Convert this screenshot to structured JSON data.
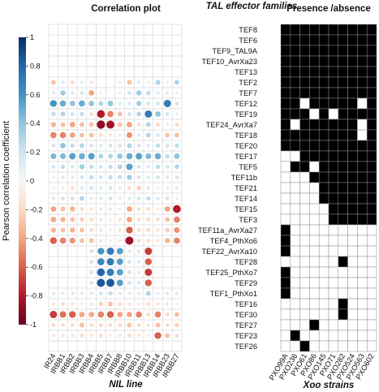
{
  "chart_data": [
    {
      "type": "heatmap",
      "title": "Correlation plot",
      "xlabel": "NIL line",
      "colorbar": {
        "label": "Pearson correlation coefficient",
        "ticks": [
          "1",
          "0.8",
          "0.6",
          "0.4",
          "0.2",
          "0",
          "-0.2",
          "-0.4",
          "-0.6",
          "-0.8",
          "-1"
        ],
        "tick_values": [
          1,
          0.8,
          0.6,
          0.4,
          0.2,
          0,
          -0.2,
          -0.4,
          -0.6,
          -0.8,
          -1
        ],
        "range": [
          -1,
          1
        ],
        "colors": [
          "#67001f",
          "#b2182b",
          "#d6604d",
          "#f4a582",
          "#fddbc7",
          "#f7f7f7",
          "#d1e5f0",
          "#92c5de",
          "#4393c3",
          "#2166ac",
          "#053061"
        ]
      },
      "columns": [
        "IR24",
        "IRBB1",
        "IRBB2",
        "IRBB3",
        "IRBB4",
        "IRBB5",
        "IRBB7",
        "IRBB8",
        "IRBB10",
        "IRBB11",
        "IRBB13",
        "IRBB14",
        "IRBB23",
        "IRBB27"
      ],
      "row_count": 31,
      "values": [
        [
          0,
          0,
          0,
          0,
          0,
          0,
          0,
          0,
          0,
          0,
          0,
          0,
          0,
          0
        ],
        [
          0,
          0,
          0,
          0,
          0,
          0,
          0,
          0,
          0,
          0,
          0,
          0,
          0,
          0
        ],
        [
          0,
          0,
          0,
          0,
          0,
          0,
          0,
          0,
          0,
          0,
          0,
          0,
          0,
          0
        ],
        [
          0,
          0,
          0,
          0,
          0,
          0,
          0,
          0,
          0,
          0,
          0,
          0,
          0,
          0
        ],
        [
          0,
          0,
          0,
          0,
          0,
          0,
          0,
          0,
          0,
          0,
          0,
          0,
          0,
          0
        ],
        [
          -0.3,
          0.15,
          -0.2,
          0.12,
          -0.15,
          0,
          0,
          0.12,
          -0.3,
          0.12,
          -0.1,
          0.3,
          -0.1,
          0.3
        ],
        [
          0.15,
          0.35,
          0.15,
          0.2,
          -0.4,
          -0.1,
          0,
          0.12,
          0.2,
          0.35,
          0.25,
          0.15,
          0.15,
          0.1
        ],
        [
          0.6,
          0.5,
          0.4,
          0.5,
          0.4,
          0.3,
          0.4,
          0.15,
          0.15,
          0.35,
          0.2,
          0.2,
          0.7,
          0.2
        ],
        [
          0.25,
          0.3,
          0.2,
          0.25,
          -0.2,
          -0.8,
          -0.5,
          -0.3,
          0.2,
          0.3,
          0.7,
          0.4,
          0.2,
          0.1
        ],
        [
          -0.35,
          -0.3,
          -0.4,
          -0.3,
          -0.3,
          -0.9,
          -0.85,
          -0.3,
          -0.4,
          -0.2,
          0.3,
          -0.2,
          -0.1,
          -0.2
        ],
        [
          -0.5,
          -0.5,
          -0.4,
          -0.3,
          -0.3,
          -0.2,
          -0.15,
          0.12,
          -0.45,
          0.15,
          0.3,
          0.2,
          -0.3,
          -0.3
        ],
        [
          0.2,
          0.4,
          0.25,
          0.3,
          0.2,
          0.15,
          0.2,
          0.2,
          0.3,
          0.2,
          0.15,
          0.25,
          0.2,
          0.25
        ],
        [
          0.45,
          0.45,
          0.55,
          0.5,
          0.55,
          0.3,
          0.3,
          0.4,
          0.5,
          0.55,
          0.45,
          0.5,
          0.25,
          0.4
        ],
        [
          0.2,
          0.25,
          0.2,
          0.35,
          0.25,
          0.2,
          0.25,
          0.3,
          0.55,
          0.2,
          0.15,
          0.25,
          0.2,
          0.3
        ],
        [
          0.1,
          0.15,
          0.15,
          0.2,
          0.25,
          0.2,
          0.25,
          0.25,
          0.35,
          0.2,
          0.15,
          0.2,
          0.15,
          0.2
        ],
        [
          -0.1,
          0.1,
          -0.2,
          0.15,
          0.2,
          0.15,
          0.2,
          0.15,
          -0.2,
          -0.25,
          0.15,
          0.1,
          -0.1,
          -0.15
        ],
        [
          0.15,
          0.2,
          0.2,
          0.3,
          0.15,
          0.15,
          0.2,
          -0.15,
          0.15,
          0.2,
          0.25,
          0.15,
          0.2,
          -0.1
        ],
        [
          -0.4,
          -0.3,
          -0.35,
          -0.2,
          -0.15,
          0.15,
          0.15,
          0.1,
          -0.4,
          -0.2,
          -0.2,
          -0.1,
          -0.4,
          -0.8
        ],
        [
          -0.4,
          -0.35,
          -0.3,
          -0.25,
          -0.2,
          0.15,
          0.1,
          -0.15,
          -0.4,
          -0.2,
          -0.2,
          -0.2,
          -0.3,
          -0.5
        ],
        [
          -0.35,
          -0.3,
          -0.35,
          -0.3,
          -0.2,
          0.15,
          0.1,
          -0.15,
          -0.6,
          -0.2,
          -0.2,
          -0.15,
          -0.25,
          -0.45
        ],
        [
          -0.6,
          -0.5,
          -0.45,
          -0.3,
          -0.3,
          0.15,
          0.1,
          -0.15,
          -0.85,
          -0.2,
          -0.2,
          -0.15,
          -0.35,
          -0.5
        ],
        [
          0,
          0,
          0,
          0,
          0.2,
          0.6,
          0.7,
          0.55,
          0.15,
          0.15,
          -0.7,
          0,
          0,
          0
        ],
        [
          0,
          0,
          0,
          0,
          0.2,
          0.65,
          0.7,
          0.55,
          0.2,
          0.15,
          -0.6,
          0,
          0,
          0
        ],
        [
          0,
          0,
          0,
          0,
          0.2,
          0.8,
          0.7,
          0.55,
          0.2,
          0.15,
          -0.7,
          0,
          0,
          0
        ],
        [
          0,
          0,
          0,
          0,
          0.2,
          0.85,
          0.85,
          0.55,
          0.2,
          0.15,
          -0.6,
          0,
          0,
          0
        ],
        [
          0.15,
          0.12,
          0.15,
          0.15,
          0.15,
          0.2,
          0.25,
          0.15,
          0.15,
          0.12,
          0.3,
          0.1,
          0.15,
          0.15
        ],
        [
          -0.15,
          -0.2,
          -0.15,
          -0.1,
          -0.15,
          -0.25,
          -0.3,
          -0.2,
          -0.15,
          -0.1,
          -0.2,
          -0.15,
          -0.15,
          -0.1
        ],
        [
          -0.7,
          -0.55,
          -0.6,
          -0.4,
          -0.4,
          -0.5,
          -0.6,
          -0.4,
          -0.4,
          -0.5,
          -0.2,
          -0.5,
          -0.2,
          -0.3
        ],
        [
          -0.2,
          -0.2,
          -0.2,
          -0.3,
          -0.2,
          -0.2,
          -0.2,
          -0.2,
          -0.3,
          -0.2,
          -0.15,
          -0.3,
          -0.2,
          -0.25
        ],
        [
          -0.15,
          -0.15,
          -0.15,
          -0.2,
          -0.15,
          -0.2,
          -0.1,
          -0.15,
          -0.2,
          -0.15,
          -0.1,
          -0.6,
          -0.3,
          -0.2
        ],
        [
          0,
          0,
          0,
          0,
          0,
          0,
          0,
          0,
          0,
          0,
          0,
          0,
          0,
          0
        ]
      ]
    },
    {
      "type": "heatmap",
      "title": "Presence /absence",
      "row_header": "TAL effector families",
      "xlabel": "Xoo strains",
      "rows": [
        "TEF8",
        "TEF6",
        "TEF9_TAL9A",
        "TEF10_AvrXa23",
        "TEF13",
        "TEF2",
        "TEF7",
        "TEF12",
        "TEF19",
        "TEF24_AvrXa7",
        "TEF18",
        "TEF20",
        "TEF17",
        "TEF5",
        "TEF11b",
        "TEF21",
        "TEF14",
        "TEF15",
        "TEF3",
        "TEF11a_AvrXa27",
        "TEF4_PthXo6",
        "TEF22_AvrXa10",
        "TEF28",
        "TEF25_PthXo7",
        "TEF29",
        "TEF1_PthXo1",
        "TEF16",
        "TEF30",
        "TEF27",
        "TEF23",
        "TEF26"
      ],
      "columns": [
        "PXO99A",
        "PXO236",
        "PXO61",
        "PXO86",
        "PXO145",
        "PXO71",
        "PXO282",
        "PXO524",
        "PXO563",
        "PXO602"
      ],
      "legend": {
        "present": "#000000",
        "absent": "#ffffff"
      },
      "matrix": [
        [
          1,
          1,
          1,
          1,
          1,
          1,
          1,
          1,
          1,
          1
        ],
        [
          1,
          1,
          1,
          1,
          1,
          1,
          1,
          1,
          1,
          1
        ],
        [
          1,
          1,
          1,
          1,
          1,
          1,
          1,
          1,
          1,
          1
        ],
        [
          1,
          1,
          1,
          1,
          1,
          1,
          1,
          1,
          1,
          1
        ],
        [
          1,
          1,
          1,
          1,
          1,
          1,
          1,
          1,
          1,
          1
        ],
        [
          1,
          1,
          1,
          1,
          1,
          1,
          1,
          1,
          1,
          1
        ],
        [
          1,
          1,
          1,
          1,
          1,
          1,
          1,
          1,
          1,
          1
        ],
        [
          1,
          1,
          0,
          1,
          1,
          1,
          1,
          1,
          0,
          1
        ],
        [
          1,
          1,
          1,
          0,
          1,
          0,
          1,
          1,
          1,
          1
        ],
        [
          1,
          0,
          1,
          1,
          1,
          1,
          1,
          1,
          0,
          1
        ],
        [
          1,
          1,
          1,
          1,
          1,
          1,
          1,
          1,
          0,
          1
        ],
        [
          1,
          1,
          1,
          1,
          1,
          1,
          1,
          1,
          1,
          1
        ],
        [
          0,
          0,
          1,
          1,
          1,
          1,
          1,
          1,
          1,
          1
        ],
        [
          0,
          1,
          1,
          0,
          1,
          1,
          1,
          1,
          1,
          1
        ],
        [
          0,
          0,
          0,
          1,
          1,
          1,
          1,
          1,
          1,
          1
        ],
        [
          0,
          0,
          0,
          0,
          1,
          1,
          1,
          1,
          1,
          1
        ],
        [
          0,
          0,
          0,
          0,
          1,
          1,
          1,
          1,
          1,
          1
        ],
        [
          0,
          0,
          0,
          0,
          0,
          1,
          1,
          1,
          1,
          1
        ],
        [
          0,
          0,
          0,
          0,
          0,
          1,
          1,
          1,
          1,
          1
        ],
        [
          1,
          0,
          0,
          0,
          0,
          0,
          0,
          0,
          0,
          0
        ],
        [
          1,
          0,
          0,
          0,
          0,
          0,
          0,
          0,
          0,
          0
        ],
        [
          1,
          0,
          0,
          0,
          0,
          0,
          0,
          0,
          0,
          0
        ],
        [
          0,
          0,
          0,
          0,
          0,
          0,
          1,
          0,
          0,
          0
        ],
        [
          1,
          0,
          0,
          0,
          0,
          0,
          0,
          0,
          0,
          0
        ],
        [
          1,
          0,
          0,
          0,
          0,
          0,
          0,
          0,
          0,
          0
        ],
        [
          1,
          0,
          0,
          0,
          0,
          0,
          0,
          0,
          0,
          0
        ],
        [
          0,
          0,
          0,
          0,
          0,
          0,
          1,
          0,
          0,
          0
        ],
        [
          0,
          0,
          0,
          0,
          0,
          0,
          1,
          0,
          0,
          0
        ],
        [
          0,
          0,
          0,
          1,
          0,
          0,
          0,
          0,
          0,
          0
        ],
        [
          0,
          1,
          0,
          0,
          0,
          0,
          0,
          0,
          0,
          0
        ],
        [
          0,
          0,
          1,
          0,
          0,
          0,
          0,
          0,
          0,
          0
        ]
      ]
    }
  ]
}
